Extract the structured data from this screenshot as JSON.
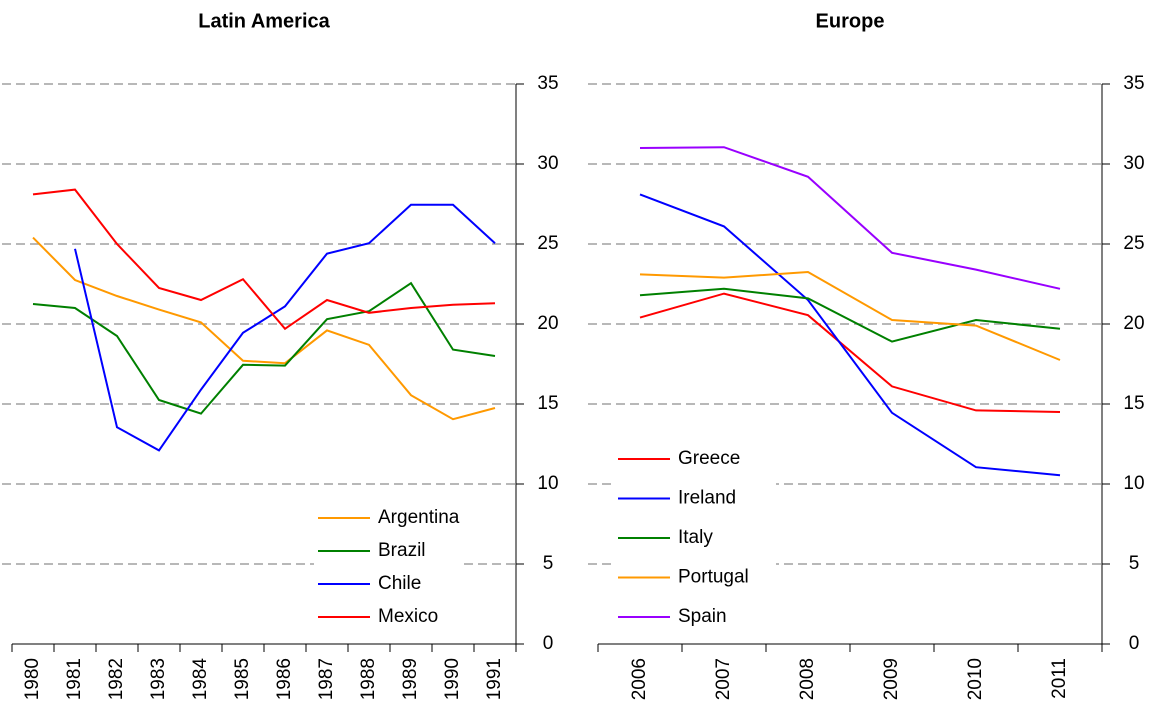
{
  "chart_data": [
    {
      "type": "line",
      "title": "Latin America",
      "categories": [
        "1980",
        "1981",
        "1982",
        "1983",
        "1984",
        "1985",
        "1986",
        "1987",
        "1988",
        "1989",
        "1990",
        "1991"
      ],
      "series": [
        {
          "name": "Argentina",
          "color": "#ff9900",
          "values": [
            25.4,
            22.75,
            21.75,
            20.9,
            20.1,
            17.7,
            17.55,
            19.6,
            18.7,
            15.55,
            14.05,
            14.75
          ]
        },
        {
          "name": "Brazil",
          "color": "#008000",
          "values": [
            21.25,
            21,
            19.25,
            15.25,
            14.4,
            17.45,
            17.4,
            20.3,
            20.8,
            22.55,
            18.4,
            18
          ]
        },
        {
          "name": "Chile",
          "color": "#0000ff",
          "values": [
            null,
            24.7,
            13.55,
            12.1,
            15.9,
            19.45,
            21.1,
            24.4,
            25.05,
            27.45,
            27.45,
            25.05
          ]
        },
        {
          "name": "Mexico",
          "color": "#ff0000",
          "values": [
            28.1,
            28.4,
            25,
            22.25,
            21.5,
            22.8,
            19.7,
            21.5,
            20.7,
            21,
            21.2,
            21.3
          ]
        }
      ],
      "ylim": [
        0,
        35
      ],
      "yticks": [
        0,
        5,
        10,
        15,
        20,
        25,
        30,
        35
      ],
      "grid": true,
      "legend": "lower right"
    },
    {
      "type": "line",
      "title": "Europe",
      "categories": [
        "2006",
        "2007",
        "2008",
        "2009",
        "2010",
        "2011"
      ],
      "series": [
        {
          "name": "Greece",
          "color": "#ff0000",
          "values": [
            20.4,
            21.9,
            20.55,
            16.1,
            14.6,
            14.5
          ]
        },
        {
          "name": "Ireland",
          "color": "#0000ff",
          "values": [
            28.1,
            26.1,
            21.5,
            14.45,
            11.05,
            10.55
          ]
        },
        {
          "name": "Italy",
          "color": "#008000",
          "values": [
            21.8,
            22.2,
            21.6,
            18.9,
            20.25,
            19.7
          ]
        },
        {
          "name": "Portugal",
          "color": "#ff9900",
          "values": [
            23.1,
            22.9,
            23.25,
            20.25,
            19.9,
            17.75
          ]
        },
        {
          "name": "Spain",
          "color": "#9900ff",
          "values": [
            31,
            31.05,
            29.2,
            24.45,
            23.4,
            22.2
          ]
        }
      ],
      "ylim": [
        0,
        35
      ],
      "yticks": [
        0,
        5,
        10,
        15,
        20,
        25,
        30,
        35
      ],
      "grid": true,
      "legend": "lower left"
    }
  ]
}
